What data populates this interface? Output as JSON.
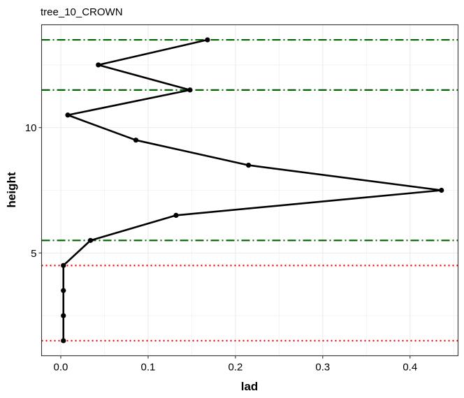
{
  "chart_data": {
    "type": "line",
    "title": "tree_10_CROWN",
    "xlabel": "lad",
    "ylabel": "height",
    "xlim": [
      -0.022,
      0.455
    ],
    "ylim": [
      0.9,
      14.1
    ],
    "x_ticks": [
      0.0,
      0.1,
      0.2,
      0.3,
      0.4
    ],
    "x_tick_labels": [
      "0.0",
      "0.1",
      "0.2",
      "0.3",
      "0.4"
    ],
    "y_ticks": [
      5,
      10
    ],
    "y_tick_labels": [
      "5",
      "10"
    ],
    "grid": true,
    "series": [
      {
        "points": [
          {
            "x": 0.003,
            "y": 1.5
          },
          {
            "x": 0.003,
            "y": 2.5
          },
          {
            "x": 0.003,
            "y": 3.5
          },
          {
            "x": 0.003,
            "y": 4.5
          },
          {
            "x": 0.034,
            "y": 5.5
          },
          {
            "x": 0.132,
            "y": 6.5
          },
          {
            "x": 0.436,
            "y": 7.5
          },
          {
            "x": 0.215,
            "y": 8.5
          },
          {
            "x": 0.086,
            "y": 9.5
          },
          {
            "x": 0.008,
            "y": 10.5
          },
          {
            "x": 0.148,
            "y": 11.5
          },
          {
            "x": 0.043,
            "y": 12.5
          },
          {
            "x": 0.168,
            "y": 13.5
          }
        ]
      }
    ],
    "hlines": [
      {
        "y": 13.5,
        "style": "dashdot",
        "color": "#006400"
      },
      {
        "y": 11.5,
        "style": "dashdot",
        "color": "#006400"
      },
      {
        "y": 5.5,
        "style": "dashdot",
        "color": "#006400"
      },
      {
        "y": 4.5,
        "style": "dotted",
        "color": "#ff0000"
      },
      {
        "y": 1.5,
        "style": "dotted",
        "color": "#ff0000"
      }
    ],
    "line_color": "#000000"
  }
}
